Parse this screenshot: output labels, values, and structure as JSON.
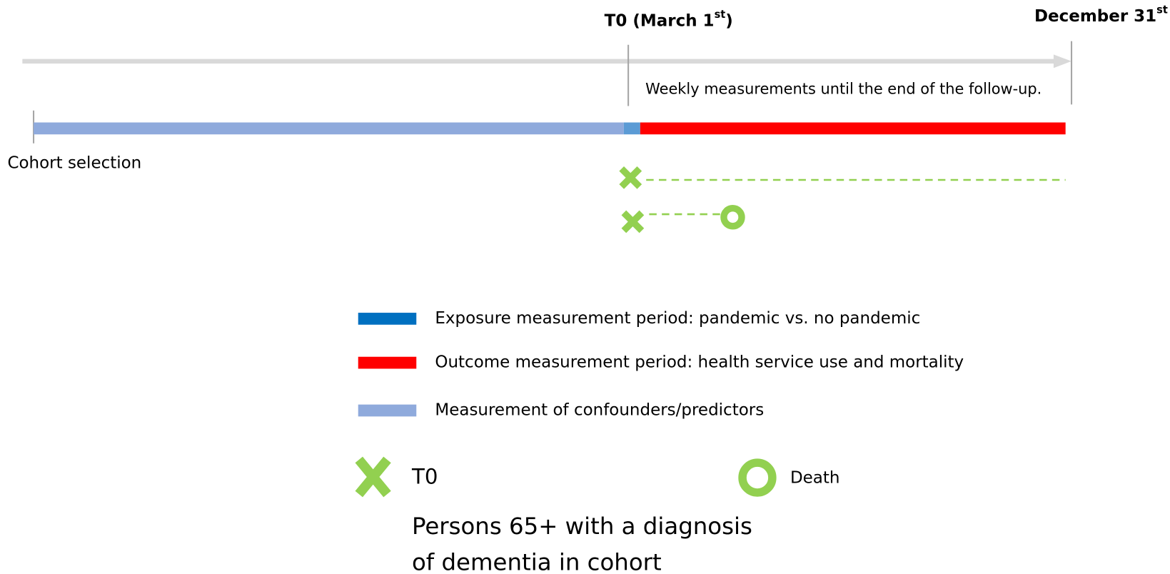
{
  "timeline": {
    "t0_label": {
      "text": "T0 (March 1",
      "sup": "st",
      "suffix": ")"
    },
    "end_label": {
      "text": "December 31",
      "sup": "st"
    },
    "weekly_note": "Weekly measurements until the end of the follow-up.",
    "start_label": "Cohort selection"
  },
  "legend": {
    "periods": [
      {
        "label": "Exposure measurement period: pandemic vs. no pandemic",
        "color": "#0070c0"
      },
      {
        "label": "Outcome measurement period: health service use and mortality",
        "color": "#ff0000"
      },
      {
        "label": "Measurement of confounders/predictors",
        "color": "#8faadc"
      }
    ],
    "t0": "T0",
    "death": "Death",
    "population": [
      "Persons 65+ with a diagnosis",
      "of dementia in cohort"
    ]
  }
}
